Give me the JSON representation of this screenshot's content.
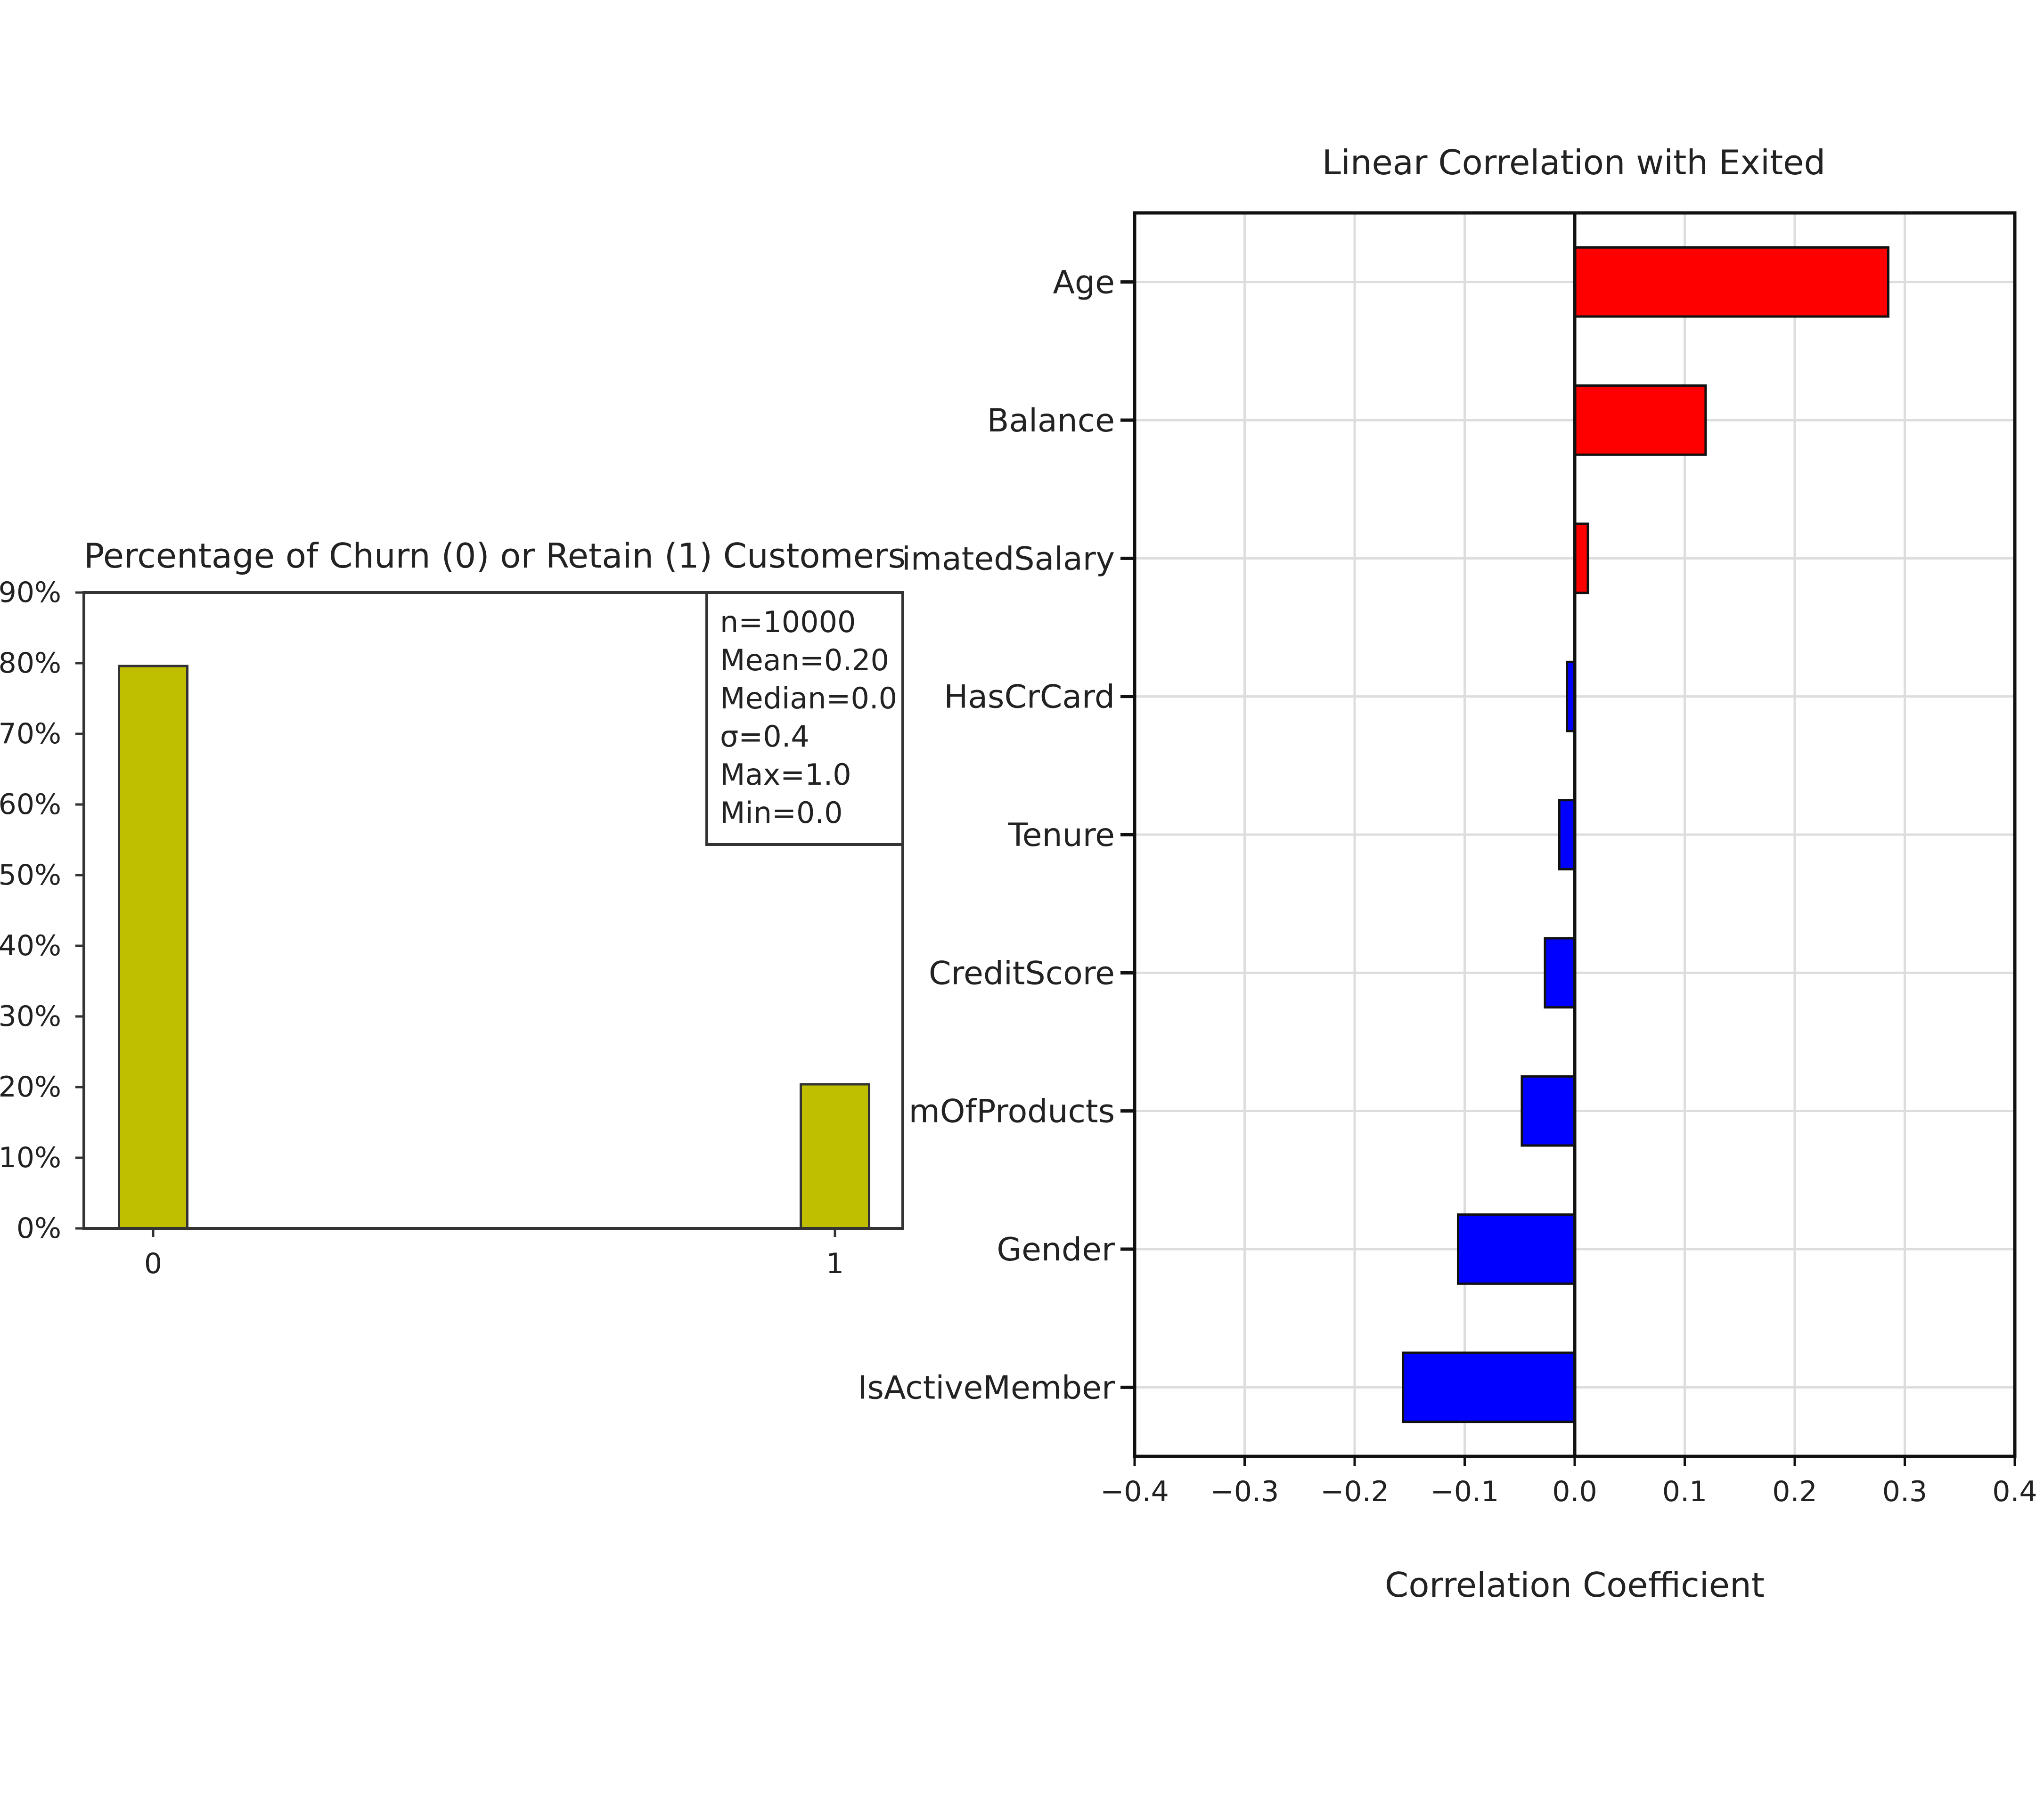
{
  "chart_data": [
    {
      "type": "bar",
      "title": "Percentage of Churn (0) or Retain (1) Customers",
      "categories": [
        "0",
        "1"
      ],
      "values": [
        79.6,
        20.4
      ],
      "ylim": [
        0,
        90
      ],
      "y_ticks": [
        "0%",
        "10%",
        "20%",
        "30%",
        "40%",
        "50%",
        "60%",
        "70%",
        "80%",
        "90%"
      ],
      "grid": false,
      "bar_color": "#bfbf00",
      "stats_box": [
        "n=10000",
        "Mean=0.20",
        "Median=0.0",
        "σ=0.4",
        "Max=1.0",
        "Min=0.0"
      ],
      "stats_box_position": "top-right"
    },
    {
      "type": "bar",
      "orientation": "horizontal",
      "title": "Linear Correlation with Exited",
      "xlabel": "Correlation Coefficient",
      "categories": [
        "Age",
        "Balance",
        "imatedSalary",
        "HasCrCard",
        "Tenure",
        "CreditScore",
        "mOfProducts",
        "Gender",
        "IsActiveMember"
      ],
      "values": [
        0.285,
        0.119,
        0.012,
        -0.007,
        -0.014,
        -0.027,
        -0.048,
        -0.106,
        -0.156
      ],
      "xlim": [
        -0.4,
        0.4
      ],
      "x_ticks": [
        "−0.4",
        "−0.3",
        "−0.2",
        "−0.1",
        "0.0",
        "0.1",
        "0.2",
        "0.3",
        "0.4"
      ],
      "grid": true,
      "positive_color": "#ff0000",
      "negative_color": "#0000ff"
    }
  ]
}
